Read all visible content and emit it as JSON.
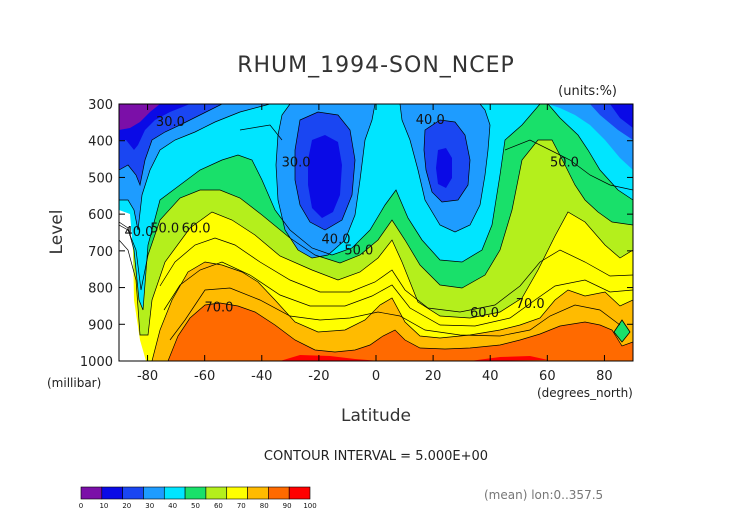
{
  "chart_data": {
    "type": "contour",
    "title": "RHUM_1994-SON_NCEP",
    "units_label": "(units:%)",
    "xlabel": "Latitude",
    "ylabel": "Level",
    "x_unit_label": "(degrees_north)",
    "y_unit_label": "(millibar)",
    "xlim": [
      -90,
      90
    ],
    "ylim": [
      1000,
      300
    ],
    "x_ticks": [
      -80,
      -60,
      -40,
      -20,
      0,
      20,
      40,
      60,
      80
    ],
    "x_tick_labels": [
      "-80",
      "-60",
      "-40",
      "-20",
      "0",
      "20",
      "40",
      "60",
      "80"
    ],
    "y_ticks": [
      300,
      400,
      500,
      600,
      700,
      800,
      900,
      1000
    ],
    "y_tick_labels": [
      "300",
      "400",
      "500",
      "600",
      "700",
      "800",
      "900",
      "1000"
    ],
    "contour_interval_text": "CONTOUR INTERVAL = 5.000E+00",
    "mean_text": "(mean) lon:0..357.5",
    "contour_labels": [
      {
        "text": "30.0",
        "lat": -72,
        "level": 360
      },
      {
        "text": "40.0",
        "lat": 19,
        "level": 355
      },
      {
        "text": "30.0",
        "lat": -28,
        "level": 470
      },
      {
        "text": "50.0",
        "lat": 66,
        "level": 470
      },
      {
        "text": "40.0",
        "lat": -83,
        "level": 660
      },
      {
        "text": "50.0",
        "lat": -74,
        "level": 650
      },
      {
        "text": "60.0",
        "lat": -63,
        "level": 650
      },
      {
        "text": "40.0",
        "lat": -14,
        "level": 680
      },
      {
        "text": "50.0",
        "lat": -6,
        "level": 710
      },
      {
        "text": "70.0",
        "lat": -55,
        "level": 865
      },
      {
        "text": "60.0",
        "lat": 38,
        "level": 880
      },
      {
        "text": "70.0",
        "lat": 54,
        "level": 855
      }
    ],
    "colorbar": {
      "ticks": [
        "0",
        "10",
        "20",
        "30",
        "40",
        "50",
        "60",
        "70",
        "80",
        "90",
        "100"
      ],
      "colors": [
        "#7b0fa8",
        "#0a0ae6",
        "#1a46f2",
        "#1e9cff",
        "#00e5ff",
        "#19e06a",
        "#b4ef1c",
        "#ffff00",
        "#ffbb00",
        "#ff6a00",
        "#ff0000"
      ]
    }
  }
}
